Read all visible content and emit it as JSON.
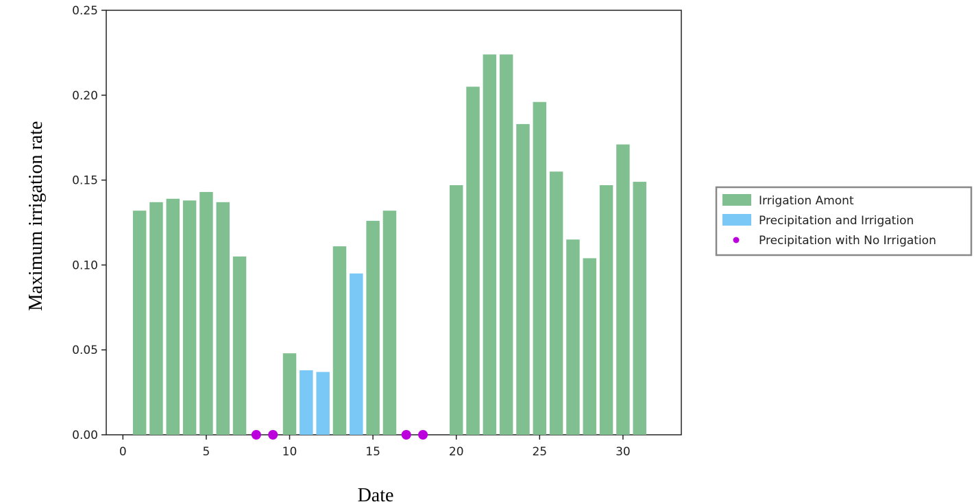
{
  "chart_data": {
    "type": "bar",
    "title": "",
    "xlabel": "Date",
    "ylabel": "Maximum irrigation rate",
    "xlim": [
      -1,
      33.5
    ],
    "ylim": [
      0,
      0.25
    ],
    "xticks": [
      0,
      5,
      10,
      15,
      20,
      25,
      30
    ],
    "xtick_labels": [
      "0",
      "5",
      "10",
      "15",
      "20",
      "25",
      "30"
    ],
    "yticks": [
      0,
      0.05,
      0.1,
      0.15,
      0.2,
      0.25
    ],
    "ytick_labels": [
      "0.00",
      "0.05",
      "0.10",
      "0.15",
      "0.20",
      "0.25"
    ],
    "grid": false,
    "legend_position": "right",
    "series": [
      {
        "name": "Irrigation Amont",
        "kind": "bar",
        "color": "#80c090",
        "x": [
          1,
          2,
          3,
          4,
          5,
          6,
          7,
          10,
          13,
          15,
          16,
          20,
          21,
          22,
          23,
          24,
          25,
          26,
          27,
          28,
          29,
          30,
          31
        ],
        "values": [
          0.132,
          0.137,
          0.139,
          0.138,
          0.143,
          0.137,
          0.105,
          0.048,
          0.111,
          0.126,
          0.132,
          0.147,
          0.205,
          0.224,
          0.224,
          0.183,
          0.196,
          0.155,
          0.115,
          0.104,
          0.147,
          0.171,
          0.149
        ]
      },
      {
        "name": "Precipitation and Irrigation",
        "kind": "bar",
        "color": "#79c8f5",
        "x": [
          11,
          12,
          14
        ],
        "values": [
          0.038,
          0.037,
          0.095
        ]
      },
      {
        "name": "Precipitation with No Irrigation",
        "kind": "scatter",
        "color": "#bb00dd",
        "x": [
          8,
          9,
          17,
          18
        ],
        "values": [
          0,
          0,
          0,
          0
        ]
      }
    ]
  }
}
